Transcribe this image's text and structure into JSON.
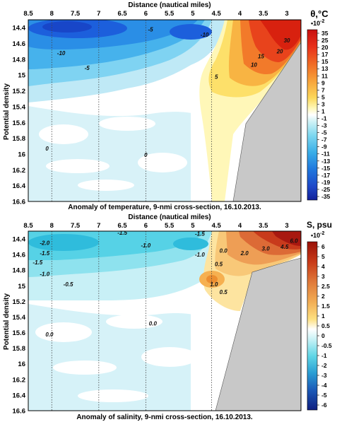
{
  "chart_data": [
    {
      "type": "heatmap",
      "title": "Anomaly of temperature, 9-nmi cross-section, 16.10.2013.",
      "xlabel": "Distance (nautical miles)",
      "ylabel": "Potential density",
      "x_ticks": [
        "8.5",
        "8",
        "7.5",
        "7",
        "6.5",
        "6",
        "5.5",
        "5",
        "4.5",
        "4",
        "3.5",
        "3"
      ],
      "y_ticks": [
        "14.4",
        "14.6",
        "14.8",
        "15",
        "15.2",
        "15.4",
        "15.6",
        "15.8",
        "16",
        "16.2",
        "16.4",
        "16.6"
      ],
      "xlim": [
        8.5,
        2.7
      ],
      "ylim": [
        14.3,
        16.6
      ],
      "colorbar": {
        "label": "θ,°C",
        "scale_label": "•10",
        "scale_exp": "-2",
        "ticks": [
          "35",
          "25",
          "20",
          "17",
          "15",
          "13",
          "11",
          "9",
          "7",
          "5",
          "3",
          "1",
          "-1",
          "-3",
          "-5",
          "-7",
          "-9",
          "-11",
          "-13",
          "-15",
          "-17",
          "-19",
          "-25",
          "-35"
        ]
      },
      "contour_labels": [
        {
          "text": "-5",
          "x": 5.9,
          "y": 14.42
        },
        {
          "text": "-10",
          "x": 4.75,
          "y": 14.49
        },
        {
          "text": "-10",
          "x": 7.8,
          "y": 14.72
        },
        {
          "text": "-5",
          "x": 7.25,
          "y": 14.91
        },
        {
          "text": "30",
          "x": 3.0,
          "y": 14.56
        },
        {
          "text": "20",
          "x": 3.15,
          "y": 14.7
        },
        {
          "text": "15",
          "x": 3.55,
          "y": 14.76
        },
        {
          "text": "10",
          "x": 3.7,
          "y": 14.87
        },
        {
          "text": "5",
          "x": 4.5,
          "y": 15.02
        },
        {
          "text": "0",
          "x": 8.1,
          "y": 15.93
        },
        {
          "text": "0",
          "x": 6.0,
          "y": 16.01
        }
      ],
      "profile_lines_x": [
        8.0,
        7.0,
        6.0,
        4.6
      ],
      "land_label": "",
      "colors": {
        "cold": "#1e4fd8",
        "warm": "#d42a17",
        "land": "#c8c8c8"
      }
    },
    {
      "type": "heatmap",
      "title": "Anomaly of salinity, 9-nmi cross-section, 16.10.2013.",
      "xlabel": "Distance (nautical miles)",
      "ylabel": "Potential density",
      "x_ticks": [
        "8.5",
        "8",
        "7.5",
        "7",
        "6.5",
        "6",
        "5.5",
        "5",
        "4.5",
        "4",
        "3.5",
        "3"
      ],
      "y_ticks": [
        "14.4",
        "14.6",
        "14.8",
        "15",
        "15.2",
        "15.4",
        "15.6",
        "15.8",
        "16",
        "16.2",
        "16.4",
        "16.6"
      ],
      "xlim": [
        8.5,
        2.7
      ],
      "ylim": [
        14.3,
        16.6
      ],
      "colorbar": {
        "label": "S, psu",
        "scale_label": "•10",
        "scale_exp": "-2",
        "ticks": [
          "6",
          "5",
          "4",
          "3",
          "2.5",
          "2",
          "1.5",
          "1",
          "0.5",
          "0",
          "-0.5",
          "-1",
          "-2",
          "-3",
          "-4",
          "-5",
          "-6"
        ]
      },
      "contour_labels": [
        {
          "text": "-2.0",
          "x": 8.15,
          "y": 14.45
        },
        {
          "text": "-1.5",
          "x": 8.15,
          "y": 14.58
        },
        {
          "text": "-1.5",
          "x": 8.3,
          "y": 14.7
        },
        {
          "text": "-1.0",
          "x": 8.15,
          "y": 14.85
        },
        {
          "text": "-0.5",
          "x": 7.65,
          "y": 14.98
        },
        {
          "text": "-1.5",
          "x": 6.5,
          "y": 14.32
        },
        {
          "text": "-1.0",
          "x": 6.0,
          "y": 14.48
        },
        {
          "text": "-1.5",
          "x": 4.85,
          "y": 14.33
        },
        {
          "text": "-1.0",
          "x": 4.85,
          "y": 14.6
        },
        {
          "text": "0.0",
          "x": 4.35,
          "y": 14.55
        },
        {
          "text": "0.5",
          "x": 4.45,
          "y": 14.72
        },
        {
          "text": "1.0",
          "x": 4.55,
          "y": 14.98
        },
        {
          "text": "0.5",
          "x": 4.35,
          "y": 15.08
        },
        {
          "text": "2.0",
          "x": 3.9,
          "y": 14.58
        },
        {
          "text": "3.0",
          "x": 3.45,
          "y": 14.52
        },
        {
          "text": "4.5",
          "x": 3.05,
          "y": 14.5
        },
        {
          "text": "6.0",
          "x": 2.85,
          "y": 14.42
        },
        {
          "text": "0.0",
          "x": 5.85,
          "y": 15.48
        },
        {
          "text": "0.0",
          "x": 8.05,
          "y": 15.62
        }
      ],
      "profile_lines_x": [
        8.0,
        7.0,
        6.0,
        4.6
      ],
      "land_label": "",
      "colors": {
        "fresh": "#18c8d8",
        "salty": "#a01808",
        "land": "#c8c8c8"
      }
    }
  ]
}
